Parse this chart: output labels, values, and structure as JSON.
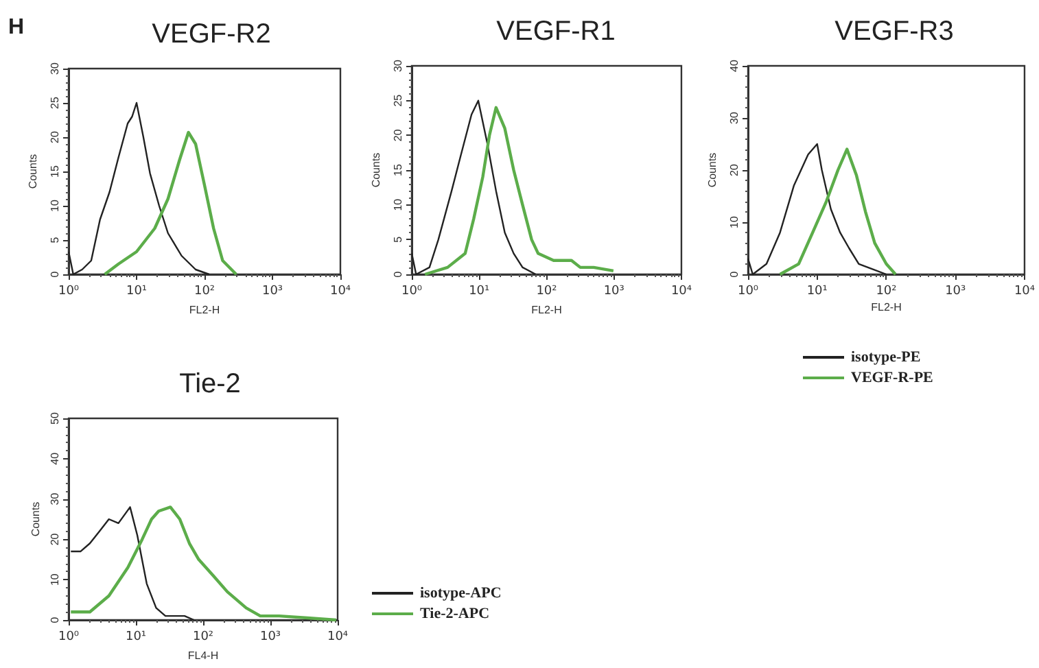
{
  "chart_data": [
    {
      "type": "line",
      "title": "VEGF-R2",
      "xlabel": "FL2-H",
      "ylabel": "Counts",
      "annotations": [
        "H"
      ],
      "log": "x",
      "xlim": [
        1,
        10000
      ],
      "xticks": [
        {
          "value": 1,
          "label": "10⁰"
        },
        {
          "value": 10,
          "label": "10¹"
        },
        {
          "value": 100,
          "label": "10²"
        },
        {
          "value": 1000,
          "label": "10³"
        },
        {
          "value": 10000,
          "label": "10⁴"
        }
      ],
      "ylim": [
        0,
        30
      ],
      "yticks": [
        0,
        5,
        10,
        15,
        20,
        25,
        30
      ],
      "grid": false,
      "legend": false,
      "marker": "none",
      "line_style": "solid",
      "series": [
        {
          "color": "#222222",
          "x": [
            1,
            1.17,
            1.58,
            2.15,
            2.9,
            4.0,
            5.4,
            7.4,
            8.6,
            10,
            12.6,
            15.8,
            21.5,
            29,
            46,
            74,
            117
          ],
          "values": [
            3.3,
            0,
            0.7,
            2,
            8,
            12,
            17,
            22,
            23,
            25,
            20,
            14.7,
            10,
            6,
            2.7,
            0.7,
            0
          ]
        },
        {
          "color": "#5cad4a",
          "x": [
            3.4,
            5.4,
            10,
            18.5,
            29,
            43,
            58,
            74,
            100,
            136,
            185,
            293
          ],
          "values": [
            0,
            1.5,
            3.3,
            6.7,
            11,
            16.7,
            20.7,
            19,
            13,
            6.7,
            2,
            0
          ]
        }
      ]
    },
    {
      "type": "line",
      "title": "VEGF-R1",
      "xlabel": "FL2-H",
      "ylabel": "Counts",
      "log": "x",
      "xlim": [
        1,
        10000
      ],
      "xticks": [
        {
          "value": 1,
          "label": "10⁰"
        },
        {
          "value": 10,
          "label": "10¹"
        },
        {
          "value": 100,
          "label": "10²"
        },
        {
          "value": 1000,
          "label": "10³"
        },
        {
          "value": 10000,
          "label": "10⁴"
        }
      ],
      "ylim": [
        0,
        30
      ],
      "yticks": [
        0,
        5,
        10,
        15,
        20,
        25,
        30
      ],
      "grid": false,
      "legend": false,
      "marker": "none",
      "line_style": "solid",
      "series": [
        {
          "color": "#222222",
          "x": [
            1,
            1.16,
            1.83,
            2.48,
            3.9,
            5.3,
            7.7,
            9.7,
            13.1,
            17.8,
            24,
            32.5,
            44,
            69
          ],
          "values": [
            3,
            0,
            1,
            5,
            12,
            17,
            23,
            25,
            19,
            12,
            6,
            3,
            1,
            0
          ]
        },
        {
          "color": "#5cad4a",
          "x": [
            1.57,
            3.4,
            6.2,
            8.3,
            11.3,
            14.2,
            17.8,
            24,
            32.5,
            44,
            60,
            75,
            127,
            234,
            316,
            500,
            980
          ],
          "values": [
            0,
            1,
            3,
            8,
            14,
            20,
            24,
            21,
            15,
            10,
            5,
            3,
            2,
            2,
            1,
            1,
            0.5
          ]
        }
      ]
    },
    {
      "type": "line",
      "title": "VEGF-R3",
      "xlabel": "FL2-H",
      "ylabel": "Counts",
      "log": "x",
      "xlim": [
        1,
        10000
      ],
      "xticks": [
        {
          "value": 1,
          "label": "10⁰"
        },
        {
          "value": 10,
          "label": "10¹"
        },
        {
          "value": 100,
          "label": "10²"
        },
        {
          "value": 1000,
          "label": "10³"
        },
        {
          "value": 10000,
          "label": "10⁴"
        }
      ],
      "ylim": [
        0,
        40
      ],
      "yticks": [
        0,
        10,
        20,
        30,
        40
      ],
      "grid": false,
      "legend": "bottom",
      "marker": "none",
      "line_style": "solid",
      "series": [
        {
          "name": "isotype-PE",
          "color": "#222222",
          "x": [
            1,
            1.17,
            1.85,
            2.9,
            4.6,
            7.4,
            10,
            11.7,
            15.8,
            21.5,
            29,
            40,
            63,
            100
          ],
          "values": [
            3,
            0,
            2,
            8,
            17,
            23,
            25,
            20,
            12.5,
            8,
            5,
            2,
            1,
            0
          ]
        },
        {
          "name": "VEGF-R-PE",
          "color": "#5cad4a",
          "x": [
            2.9,
            5.4,
            8.6,
            13.6,
            20,
            27,
            37,
            50,
            68,
            100,
            136
          ],
          "values": [
            0,
            2,
            8,
            14,
            20,
            24,
            19,
            12,
            6,
            2,
            0
          ]
        }
      ]
    },
    {
      "type": "line",
      "title": "Tie-2",
      "xlabel": "FL4-H",
      "ylabel": "Counts",
      "log": "x",
      "xlim": [
        1,
        10000
      ],
      "xticks": [
        {
          "value": 1,
          "label": "10⁰"
        },
        {
          "value": 10,
          "label": "10¹"
        },
        {
          "value": 100,
          "label": "10²"
        },
        {
          "value": 1000,
          "label": "10³"
        },
        {
          "value": 10000,
          "label": "10⁴"
        }
      ],
      "ylim": [
        0,
        50
      ],
      "yticks": [
        0,
        10,
        20,
        30,
        40,
        50
      ],
      "grid": false,
      "legend": "right",
      "marker": "none",
      "line_style": "solid",
      "series": [
        {
          "name": "isotype-APC",
          "color": "#222222",
          "x": [
            1.08,
            1.5,
            2.07,
            2.87,
            3.97,
            5.5,
            8.2,
            10.5,
            14.5,
            20,
            27.5,
            53,
            73
          ],
          "values": [
            17,
            17,
            19,
            22,
            25,
            24,
            28,
            21,
            9,
            3,
            1,
            1,
            0
          ]
        },
        {
          "name": "Tie-2-APC",
          "color": "#5cad4a",
          "x": [
            1.08,
            2.07,
            3.97,
            7.6,
            12.4,
            17.1,
            21.8,
            32.6,
            45,
            62.5,
            86,
            141,
            229,
            436,
            708,
            1350,
            3600,
            9500
          ],
          "values": [
            2,
            2,
            6,
            13,
            20,
            25,
            27,
            28,
            25,
            19,
            15,
            11,
            7,
            3,
            1,
            1,
            0.5,
            0
          ]
        }
      ]
    }
  ]
}
